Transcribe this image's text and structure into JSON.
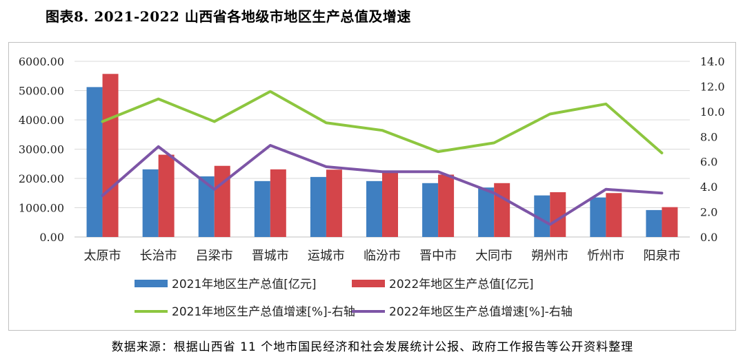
{
  "title": "图表8.   2021-2022 山西省各地级市地区生产总值及增速",
  "source": "数据来源：根据山西省 11 个地市国民经济和社会发展统计公报、政府工作报告等公开资料整理",
  "colors": {
    "bar2021": "#3f7fc1",
    "bar2022": "#d4454a",
    "line2021": "#8dc63f",
    "line2022": "#7d55a6",
    "grid": "#d9d9d9"
  },
  "chart_data": {
    "type": "bar",
    "categories": [
      "太原市",
      "长治市",
      "吕梁市",
      "晋城市",
      "运城市",
      "临汾市",
      "晋中市",
      "大同市",
      "朔州市",
      "忻州市",
      "阳泉市"
    ],
    "y_left": {
      "ticks": [
        "0.00",
        "1000.00",
        "2000.00",
        "3000.00",
        "4000.00",
        "5000.00",
        "6000.00"
      ],
      "ylim": [
        0,
        6000
      ]
    },
    "y_right": {
      "ticks": [
        "0.0",
        "2.0",
        "4.0",
        "6.0",
        "8.0",
        "10.0",
        "12.0",
        "14.0"
      ],
      "ylim": [
        0,
        14
      ]
    },
    "series": [
      {
        "name": "2021年地区生产总值[亿元]",
        "type": "bar",
        "axis": "left",
        "values": [
          5120,
          2310,
          2070,
          1910,
          2050,
          1910,
          1840,
          1690,
          1420,
          1350,
          920
        ]
      },
      {
        "name": "2022年地区生产总值[亿元]",
        "type": "bar",
        "axis": "left",
        "values": [
          5570,
          2810,
          2430,
          2310,
          2300,
          2220,
          2130,
          1840,
          1530,
          1500,
          1020
        ]
      },
      {
        "name": "2021年地区生产总值增速[%]-右轴",
        "type": "line",
        "axis": "right",
        "values": [
          9.2,
          11.0,
          9.2,
          11.6,
          9.1,
          8.5,
          6.8,
          7.5,
          9.8,
          10.6,
          6.7
        ]
      },
      {
        "name": "2022年地区生产总值增速[%]-右轴",
        "type": "line",
        "axis": "right",
        "values": [
          3.3,
          7.2,
          3.8,
          7.3,
          5.6,
          5.2,
          5.2,
          3.5,
          1.0,
          3.8,
          3.5
        ]
      }
    ],
    "grid": true,
    "legend_position": "bottom"
  }
}
